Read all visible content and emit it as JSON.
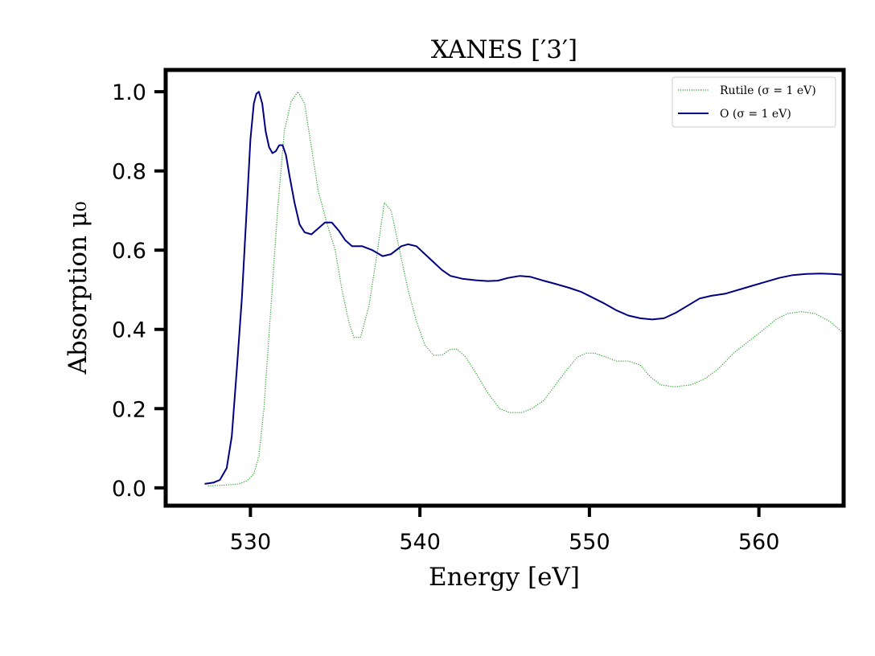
{
  "chart_data": {
    "type": "line",
    "title": "XANES [′3′]",
    "xlabel": "Energy [eV]",
    "ylabel": "Absorption μ₀",
    "xlim": [
      525,
      565
    ],
    "ylim": [
      -0.045,
      1.055
    ],
    "xticks": [
      530,
      540,
      550,
      560
    ],
    "yticks": [
      0.0,
      0.2,
      0.4,
      0.6,
      0.8,
      1.0
    ],
    "xtick_labels": [
      "530",
      "540",
      "550",
      "560"
    ],
    "ytick_labels": [
      "0.0",
      "0.2",
      "0.4",
      "0.6",
      "0.8",
      "1.0"
    ],
    "grid": false,
    "legend_position": "top-right",
    "series": [
      {
        "name": "Rutile (σ = 1 eV)",
        "color": "#2ca02c",
        "style": "dotted",
        "x": [
          527.5,
          528.5,
          529.3,
          529.8,
          530.2,
          530.5,
          530.8,
          531.2,
          531.6,
          532.0,
          532.4,
          532.8,
          533.2,
          533.6,
          534.0,
          534.5,
          535.0,
          535.4,
          535.8,
          536.1,
          536.5,
          537.0,
          537.5,
          537.9,
          538.3,
          538.8,
          539.3,
          539.8,
          540.3,
          540.8,
          541.3,
          541.8,
          542.2,
          542.7,
          543.3,
          544.0,
          544.7,
          545.3,
          546.0,
          546.6,
          547.3,
          548.0,
          548.7,
          549.3,
          549.8,
          550.3,
          551.0,
          551.6,
          552.3,
          553.0,
          553.6,
          554.2,
          555.0,
          556.0,
          556.8,
          557.6,
          558.5,
          559.4,
          560.3,
          561.0,
          561.7,
          562.5,
          563.3,
          564.2,
          565.0
        ],
        "values": [
          0.005,
          0.007,
          0.01,
          0.018,
          0.035,
          0.08,
          0.2,
          0.45,
          0.7,
          0.9,
          0.975,
          1.0,
          0.97,
          0.86,
          0.75,
          0.67,
          0.6,
          0.5,
          0.42,
          0.38,
          0.38,
          0.46,
          0.6,
          0.72,
          0.7,
          0.6,
          0.5,
          0.42,
          0.36,
          0.335,
          0.335,
          0.35,
          0.35,
          0.33,
          0.29,
          0.24,
          0.2,
          0.19,
          0.19,
          0.2,
          0.22,
          0.26,
          0.3,
          0.33,
          0.34,
          0.34,
          0.33,
          0.32,
          0.32,
          0.31,
          0.28,
          0.26,
          0.255,
          0.26,
          0.275,
          0.3,
          0.34,
          0.37,
          0.4,
          0.425,
          0.44,
          0.445,
          0.44,
          0.42,
          0.39
        ]
      },
      {
        "name": "O (σ = 1 eV)",
        "color": "#000080",
        "style": "solid",
        "x": [
          527.3,
          527.8,
          528.2,
          528.6,
          528.9,
          529.2,
          529.5,
          529.8,
          530.0,
          530.2,
          530.35,
          530.5,
          530.7,
          530.9,
          531.1,
          531.3,
          531.5,
          531.7,
          531.9,
          532.1,
          532.3,
          532.6,
          532.9,
          533.2,
          533.6,
          534.0,
          534.4,
          534.8,
          535.2,
          535.6,
          536.0,
          536.6,
          537.2,
          537.8,
          538.3,
          538.9,
          539.3,
          539.8,
          540.3,
          540.8,
          541.3,
          541.8,
          542.5,
          543.3,
          544.0,
          544.6,
          545.2,
          545.9,
          546.5,
          547.2,
          548.0,
          548.8,
          549.5,
          550.2,
          550.9,
          551.6,
          552.3,
          553.0,
          553.7,
          554.4,
          555.1,
          555.8,
          556.5,
          557.2,
          558.0,
          558.8,
          559.6,
          560.4,
          561.2,
          562.0,
          562.8,
          563.6,
          564.3,
          565.0
        ],
        "values": [
          0.01,
          0.013,
          0.02,
          0.05,
          0.13,
          0.3,
          0.48,
          0.72,
          0.88,
          0.97,
          0.995,
          1.0,
          0.97,
          0.9,
          0.86,
          0.845,
          0.85,
          0.865,
          0.865,
          0.84,
          0.79,
          0.72,
          0.665,
          0.645,
          0.64,
          0.655,
          0.67,
          0.67,
          0.65,
          0.625,
          0.61,
          0.61,
          0.6,
          0.585,
          0.59,
          0.61,
          0.615,
          0.61,
          0.59,
          0.57,
          0.55,
          0.535,
          0.528,
          0.524,
          0.522,
          0.523,
          0.53,
          0.535,
          0.533,
          0.524,
          0.515,
          0.505,
          0.495,
          0.48,
          0.465,
          0.448,
          0.435,
          0.428,
          0.425,
          0.428,
          0.442,
          0.46,
          0.478,
          0.485,
          0.49,
          0.5,
          0.51,
          0.52,
          0.53,
          0.537,
          0.54,
          0.541,
          0.54,
          0.538
        ]
      }
    ]
  }
}
